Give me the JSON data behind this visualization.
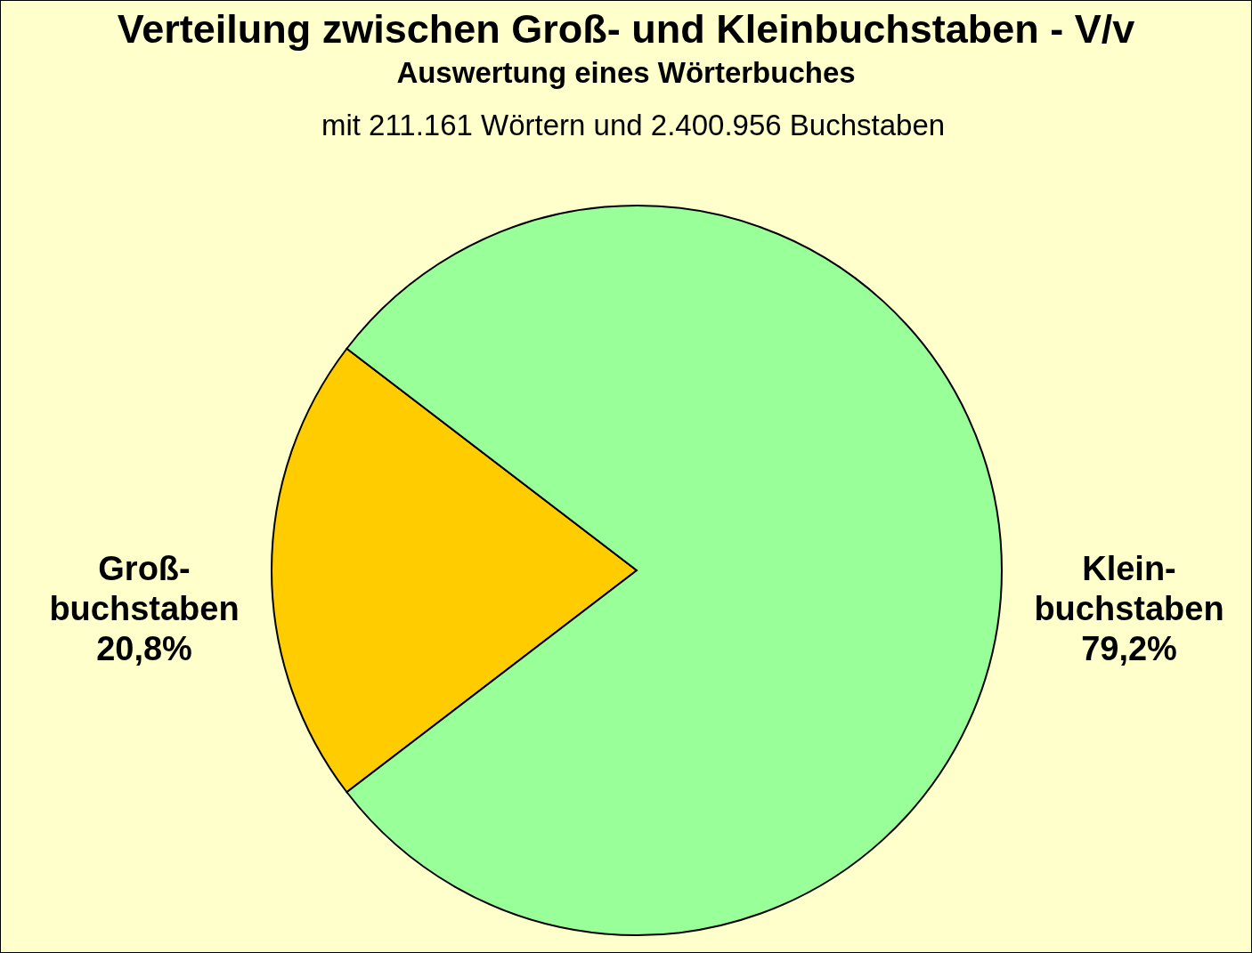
{
  "chart_data": {
    "type": "pie",
    "title": "Verteilung zwischen Groß- und  Kleinbuchstaben - V/v",
    "subtitle": "Auswertung eines Wörterbuches",
    "annotations": [
      "mit 211.161 Wörtern und 2.400.956 Buchstaben"
    ],
    "categories": [
      "Groß-\nbuchstaben",
      "Klein-\nbuchstaben"
    ],
    "values": [
      20.8,
      79.2
    ],
    "colors": [
      "#ffcc00",
      "#99ff99"
    ],
    "value_labels": [
      "20,8%",
      "79,2%"
    ]
  }
}
